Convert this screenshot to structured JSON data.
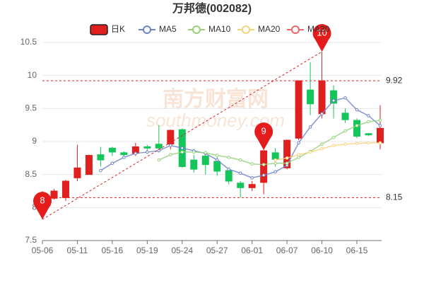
{
  "chart_data": {
    "type": "candlestick",
    "title": "万邦德(002082)",
    "categories": [
      "05-06",
      null,
      null,
      "05-11",
      null,
      null,
      "05-16",
      null,
      null,
      "05-19",
      null,
      null,
      "05-24",
      null,
      null,
      "05-27",
      null,
      null,
      "06-01",
      null,
      null,
      "06-07",
      null,
      null,
      "06-10",
      null,
      null,
      "06-15",
      null,
      null
    ],
    "candle_name": "日K",
    "up_color": "#e01f1f",
    "down_color": "#14c55b",
    "open": [
      8.1,
      8.14,
      8.15,
      8.45,
      8.5,
      8.8,
      8.9,
      8.83,
      8.82,
      8.92,
      8.96,
      8.96,
      9.18,
      8.72,
      8.78,
      8.7,
      8.56,
      8.37,
      8.3,
      8.38,
      8.83,
      8.6,
      9.05,
      9.78,
      9.42,
      9.77,
      9.43,
      9.32,
      9.12,
      8.98
    ],
    "high": [
      8.25,
      8.28,
      8.42,
      8.95,
      8.8,
      8.92,
      8.92,
      8.85,
      8.98,
      8.95,
      9.25,
      9.18,
      9.2,
      8.8,
      8.82,
      8.78,
      8.6,
      8.4,
      8.4,
      8.87,
      8.9,
      9.03,
      9.92,
      10.2,
      10.36,
      9.85,
      9.5,
      9.35,
      9.13,
      9.55
    ],
    "low": [
      7.82,
      8.12,
      8.1,
      8.4,
      8.5,
      8.62,
      8.78,
      8.78,
      8.78,
      8.85,
      8.85,
      8.88,
      8.6,
      8.53,
      8.5,
      8.48,
      8.35,
      8.15,
      8.25,
      8.2,
      8.62,
      8.58,
      9.02,
      9.4,
      9.35,
      9.35,
      9.28,
      9.05,
      9.08,
      8.88
    ],
    "close": [
      8.15,
      8.25,
      8.4,
      8.6,
      8.79,
      8.72,
      8.84,
      8.8,
      8.92,
      8.9,
      8.9,
      9.17,
      8.62,
      8.58,
      8.65,
      8.55,
      8.4,
      8.3,
      8.35,
      8.86,
      8.73,
      9.02,
      9.92,
      9.57,
      9.92,
      9.58,
      9.33,
      9.08,
      9.1,
      9.2
    ],
    "series": [
      {
        "name": "MA5",
        "color": "#6f83c9",
        "values": [
          null,
          null,
          null,
          null,
          null,
          8.56,
          8.67,
          8.76,
          8.82,
          8.84,
          8.86,
          8.94,
          8.9,
          8.86,
          8.82,
          8.72,
          8.58,
          8.52,
          8.45,
          8.49,
          8.54,
          8.64,
          8.98,
          9.22,
          9.42,
          9.62,
          9.66,
          9.48,
          9.39,
          9.24
        ]
      },
      {
        "name": "MA10",
        "color": "#97d17c",
        "values": [
          null,
          null,
          null,
          null,
          null,
          null,
          null,
          null,
          null,
          null,
          8.72,
          8.8,
          8.84,
          8.84,
          8.83,
          8.79,
          8.76,
          8.72,
          8.66,
          8.65,
          8.67,
          8.67,
          8.76,
          8.85,
          8.96,
          9.06,
          9.16,
          9.24,
          9.3,
          9.32
        ]
      },
      {
        "name": "MA20",
        "color": "#f6d27a",
        "values": [
          null,
          null,
          null,
          null,
          null,
          null,
          null,
          null,
          null,
          null,
          null,
          null,
          null,
          null,
          null,
          null,
          null,
          null,
          null,
          null,
          8.72,
          8.75,
          8.8,
          8.84,
          8.89,
          8.94,
          8.96,
          8.97,
          8.98,
          8.98
        ]
      },
      {
        "name": "MA30",
        "color": "#ee6666",
        "values": [
          null,
          null,
          null,
          null,
          null,
          null,
          null,
          null,
          null,
          null,
          null,
          null,
          null,
          null,
          null,
          null,
          null,
          null,
          null,
          null,
          null,
          null,
          null,
          null,
          null,
          null,
          null,
          null,
          null,
          null
        ]
      }
    ],
    "ylim": [
      7.5,
      10.5
    ],
    "yticks": [
      7.5,
      8,
      8.5,
      9,
      9.5,
      10,
      10.5
    ],
    "grid": true,
    "reference_lines": [
      {
        "value": 9.92
      },
      {
        "value": 8.15
      }
    ],
    "markers": [
      {
        "index": 0,
        "value": 7.82,
        "label": "8"
      },
      {
        "index": 19,
        "value": 8.87,
        "label": "9"
      },
      {
        "index": 24,
        "value": 10.36,
        "label": "10"
      }
    ],
    "watermark": {
      "text": "南方财富网",
      "subtext": "southmoney.com"
    }
  }
}
